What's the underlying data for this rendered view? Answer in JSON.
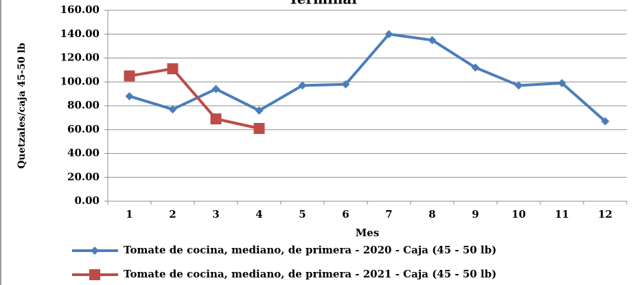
{
  "chart_data": {
    "type": "line",
    "title": "Terminal",
    "x_label": "Mes",
    "y_label": "Quetzales/caja 45-50 lb",
    "categories": [
      "1",
      "2",
      "3",
      "4",
      "5",
      "6",
      "7",
      "8",
      "9",
      "10",
      "11",
      "12"
    ],
    "series": [
      {
        "name": "Tomate de cocina, mediano, de primera - 2020 - Caja (45 - 50 lb)",
        "color": "#4a7ebb",
        "marker": "diamond",
        "values": [
          88,
          77,
          94,
          76,
          97,
          98,
          140,
          135,
          112,
          97,
          99,
          67
        ]
      },
      {
        "name": "Tomate de cocina, mediano, de primera - 2021 - Caja (45 - 50 lb)",
        "color": "#be4b48",
        "marker": "square",
        "values": [
          105,
          111,
          69,
          61,
          null,
          null,
          null,
          null,
          null,
          null,
          null,
          null
        ]
      }
    ],
    "ylim": [
      0,
      160
    ],
    "yticks": [
      {
        "value": 0,
        "label": "0.00"
      },
      {
        "value": 20,
        "label": "20.00"
      },
      {
        "value": 40,
        "label": "40.00"
      },
      {
        "value": 60,
        "label": "60.00"
      },
      {
        "value": 80,
        "label": "80.00"
      },
      {
        "value": 100,
        "label": "100.00"
      },
      {
        "value": 120,
        "label": "120.00"
      },
      {
        "value": 140,
        "label": "140.00"
      },
      {
        "value": 160,
        "label": "160.00"
      }
    ],
    "grid": true
  }
}
